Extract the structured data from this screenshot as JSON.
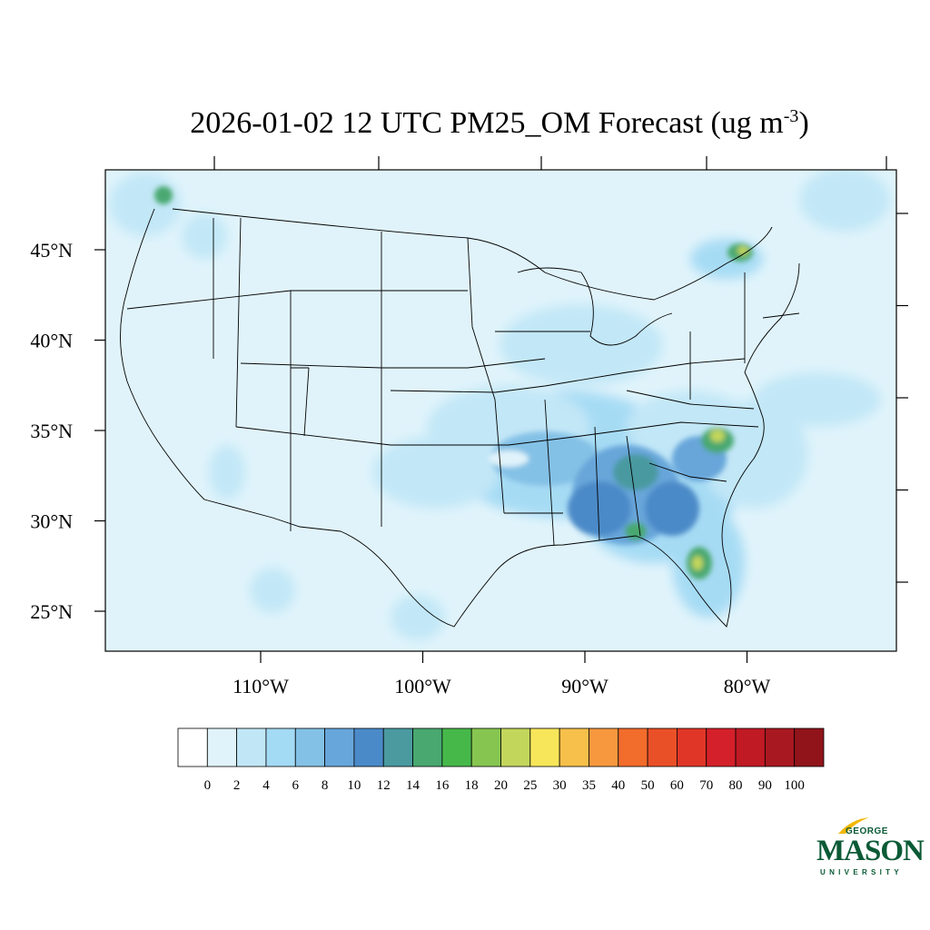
{
  "title": {
    "main": "2026-01-02 12 UTC PM25_OM Forecast (ug m",
    "sup": "-3",
    "close": ")"
  },
  "lat_ticks": [
    {
      "label": "45°N",
      "lat": 45
    },
    {
      "label": "40°N",
      "lat": 40
    },
    {
      "label": "35°N",
      "lat": 35
    },
    {
      "label": "30°N",
      "lat": 30
    },
    {
      "label": "25°N",
      "lat": 25
    }
  ],
  "lon_ticks": [
    {
      "label": "110°W",
      "lon": -110
    },
    {
      "label": "100°W",
      "lon": -100
    },
    {
      "label": "90°W",
      "lon": -90
    },
    {
      "label": "80°W",
      "lon": -80
    }
  ],
  "colorbar": {
    "labels": [
      "0",
      "2",
      "4",
      "6",
      "8",
      "10",
      "12",
      "14",
      "16",
      "18",
      "20",
      "25",
      "30",
      "35",
      "40",
      "50",
      "60",
      "70",
      "80",
      "90",
      "100"
    ],
    "colors": [
      "#ffffff",
      "#e0f3fb",
      "#c1e7f7",
      "#a3daf4",
      "#84c1e6",
      "#67a6da",
      "#4b8ac8",
      "#4a9aa0",
      "#48a870",
      "#46b84a",
      "#86c650",
      "#c3d65c",
      "#f7e65a",
      "#f7c04a",
      "#f7983e",
      "#f26c2c",
      "#ea5028",
      "#e03628",
      "#d4202a",
      "#c01a24",
      "#a81820",
      "#90141a"
    ]
  },
  "map": {
    "background_color": "#e0f3fb",
    "boundary_color": "#000000"
  },
  "logo": {
    "top": "GEORGE",
    "name": "MASON",
    "bottom": "UNIVERSITY"
  }
}
